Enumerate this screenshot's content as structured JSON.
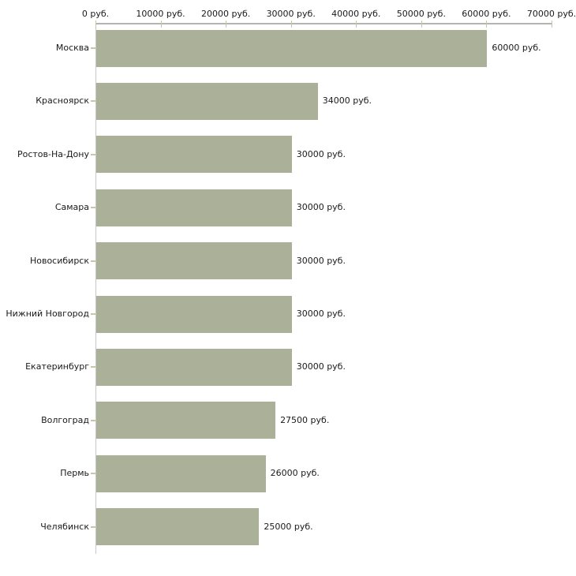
{
  "chart_data": {
    "type": "bar",
    "orientation": "horizontal",
    "title": "",
    "categories": [
      "Москва",
      "Красноярск",
      "Ростов-На-Дону",
      "Самара",
      "Новосибирск",
      "Нижний Новгород",
      "Екатеринбург",
      "Волгоград",
      "Пермь",
      "Челябинск"
    ],
    "values": [
      60000,
      34000,
      30000,
      30000,
      30000,
      30000,
      30000,
      27500,
      26000,
      25000
    ],
    "value_labels": [
      "60000 руб.",
      "34000 руб.",
      "30000 руб.",
      "30000 руб.",
      "30000 руб.",
      "30000 руб.",
      "30000 руб.",
      "27500 руб.",
      "26000 руб.",
      "25000 руб."
    ],
    "x_ticks": [
      0,
      10000,
      20000,
      30000,
      40000,
      50000,
      60000,
      70000
    ],
    "x_tick_labels": [
      "0 руб.",
      "10000 руб.",
      "20000 руб.",
      "30000 руб.",
      "40000 руб.",
      "50000 руб.",
      "60000 руб.",
      "70000 руб."
    ],
    "xlim": [
      0,
      70000
    ],
    "unit": "руб.",
    "grid": false,
    "legend": false,
    "colors": {
      "bar": "#abb198",
      "x_axis_line": "#b3b3b3",
      "y_axis_line": "#c8c8c8",
      "tick_mark": "#c9c6a2",
      "text": "#1a1a1a",
      "background": "#ffffff"
    }
  }
}
